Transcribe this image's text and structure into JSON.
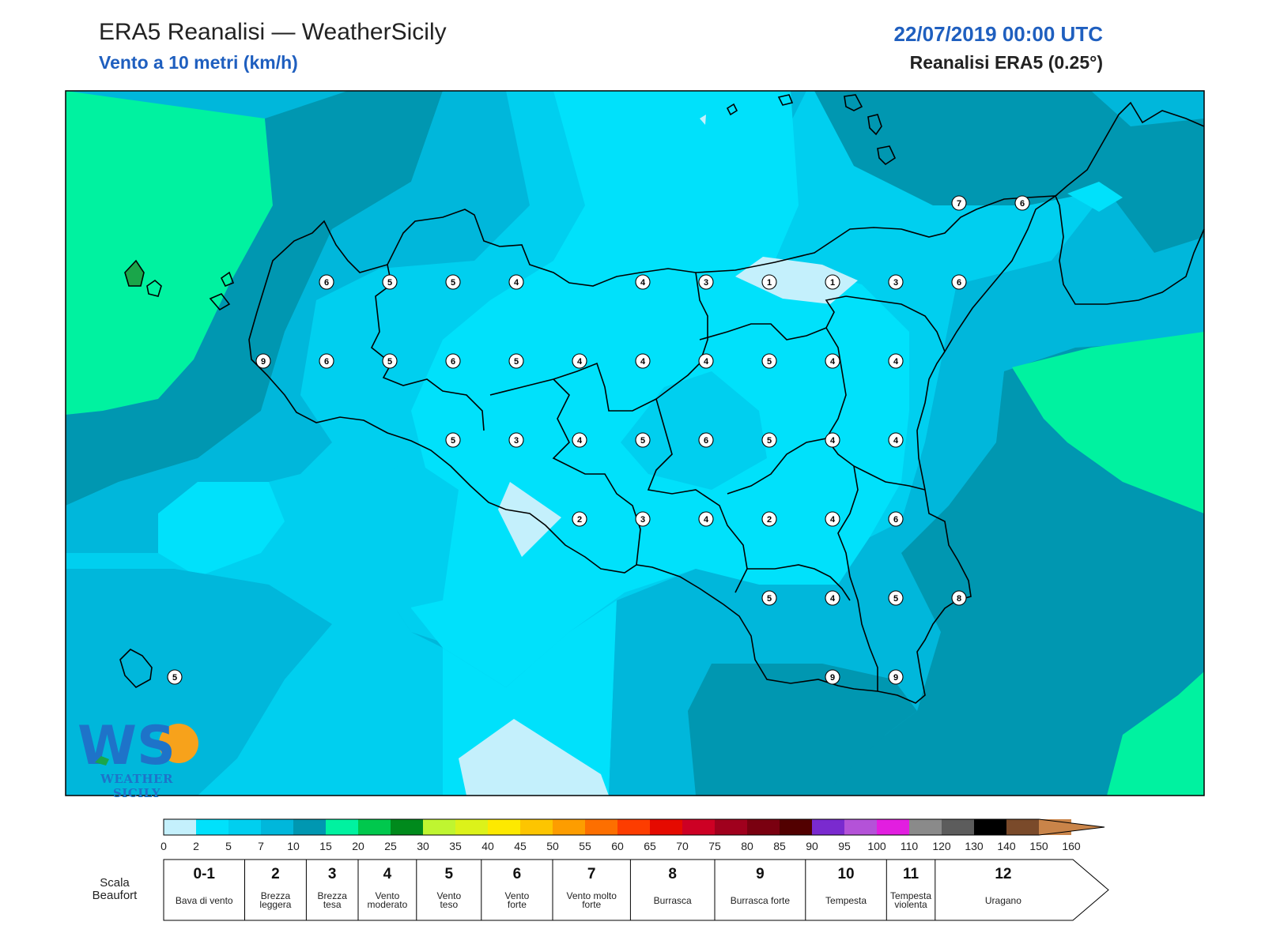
{
  "header": {
    "title": "ERA5 Reanalisi — WeatherSicily",
    "subtitle": "Vento a 10 metri (km/h)",
    "datetime": "22/07/2019 00:00 UTC",
    "source": "Reanalisi ERA5 (0.25°)"
  },
  "logo": {
    "mark": "WS",
    "text": "WEATHER SICILY"
  },
  "map": {
    "region": "Sicilia",
    "stations": [
      {
        "value": "6",
        "lon": 12.6,
        "lat": 38.1
      },
      {
        "value": "5",
        "lon": 13.1,
        "lat": 38.1
      },
      {
        "value": "5",
        "lon": 13.6,
        "lat": 38.1
      },
      {
        "value": "4",
        "lon": 14.1,
        "lat": 38.1
      },
      {
        "value": "4",
        "lon": 15.1,
        "lat": 38.1
      },
      {
        "value": "3",
        "lon": 15.6,
        "lat": 38.1
      },
      {
        "value": "1",
        "lon": 16.1,
        "lat": 38.1
      },
      {
        "value": "1",
        "lon": 16.6,
        "lat": 38.1
      },
      {
        "value": "3",
        "lon": 17.1,
        "lat": 38.1
      },
      {
        "value": "6",
        "lon": 17.6,
        "lat": 38.1
      },
      {
        "value": "9",
        "lon": 12.1,
        "lat": 37.6
      },
      {
        "value": "6",
        "lon": 12.6,
        "lat": 37.6
      },
      {
        "value": "5",
        "lon": 13.1,
        "lat": 37.6
      },
      {
        "value": "6",
        "lon": 13.6,
        "lat": 37.6
      },
      {
        "value": "5",
        "lon": 14.1,
        "lat": 37.6
      },
      {
        "value": "4",
        "lon": 14.6,
        "lat": 37.6
      },
      {
        "value": "4",
        "lon": 15.1,
        "lat": 37.6
      },
      {
        "value": "4",
        "lon": 15.6,
        "lat": 37.6
      },
      {
        "value": "5",
        "lon": 16.1,
        "lat": 37.6
      },
      {
        "value": "4",
        "lon": 16.6,
        "lat": 37.6
      },
      {
        "value": "4",
        "lon": 17.1,
        "lat": 37.6
      },
      {
        "value": "5",
        "lon": 13.6,
        "lat": 37.1
      },
      {
        "value": "3",
        "lon": 14.1,
        "lat": 37.1
      },
      {
        "value": "4",
        "lon": 14.6,
        "lat": 37.1
      },
      {
        "value": "5",
        "lon": 15.1,
        "lat": 37.1
      },
      {
        "value": "6",
        "lon": 15.6,
        "lat": 37.1
      },
      {
        "value": "5",
        "lon": 16.1,
        "lat": 37.1
      },
      {
        "value": "4",
        "lon": 16.6,
        "lat": 37.1
      },
      {
        "value": "4",
        "lon": 17.1,
        "lat": 37.1
      },
      {
        "value": "2",
        "lon": 14.6,
        "lat": 36.6
      },
      {
        "value": "3",
        "lon": 15.1,
        "lat": 36.6
      },
      {
        "value": "4",
        "lon": 15.6,
        "lat": 36.6
      },
      {
        "value": "2",
        "lon": 16.1,
        "lat": 36.6
      },
      {
        "value": "4",
        "lon": 16.6,
        "lat": 36.6
      },
      {
        "value": "6",
        "lon": 17.1,
        "lat": 36.6
      },
      {
        "value": "5",
        "lon": 16.1,
        "lat": 36.1
      },
      {
        "value": "4",
        "lon": 16.6,
        "lat": 36.1
      },
      {
        "value": "5",
        "lon": 17.1,
        "lat": 36.1
      },
      {
        "value": "8",
        "lon": 17.6,
        "lat": 36.1
      },
      {
        "value": "9",
        "lon": 16.6,
        "lat": 35.6
      },
      {
        "value": "9",
        "lon": 17.1,
        "lat": 35.6
      },
      {
        "value": "7",
        "lon": 17.6,
        "lat": 38.6
      },
      {
        "value": "6",
        "lon": 18.1,
        "lat": 38.6
      },
      {
        "value": "5",
        "lon": 11.4,
        "lat": 35.6
      }
    ]
  },
  "colorbar": {
    "ticks": [
      "0",
      "2",
      "5",
      "7",
      "10",
      "15",
      "20",
      "25",
      "30",
      "35",
      "40",
      "45",
      "50",
      "55",
      "60",
      "65",
      "70",
      "75",
      "80",
      "85",
      "90",
      "95",
      "100",
      "110",
      "120",
      "130",
      "140",
      "150",
      "160"
    ],
    "colors": [
      "#c4f0fc",
      "#00e1fb",
      "#00cfef",
      "#00b7db",
      "#0097b1",
      "#00f2a0",
      "#00c84d",
      "#008a1c",
      "#bff530",
      "#dcf21a",
      "#fde900",
      "#fdc500",
      "#fd9d00",
      "#fd6f00",
      "#fd3d00",
      "#e50a00",
      "#cd0024",
      "#a0001d",
      "#7a0010",
      "#520000",
      "#7a2acf",
      "#b452d8",
      "#e21ee0",
      "#8a8a8a",
      "#5c5c5c",
      "#000000",
      "#7a4a2a",
      "#c98449"
    ]
  },
  "beaufort": {
    "label": "Scala Beaufort",
    "levels": [
      {
        "num": "0-1",
        "name": "Bava di vento"
      },
      {
        "num": "2",
        "name": "Brezza leggera"
      },
      {
        "num": "3",
        "name": "Brezza tesa"
      },
      {
        "num": "4",
        "name": "Vento moderato"
      },
      {
        "num": "5",
        "name": "Vento teso"
      },
      {
        "num": "6",
        "name": "Vento forte"
      },
      {
        "num": "7",
        "name": "Vento molto forte"
      },
      {
        "num": "8",
        "name": "Burrasca"
      },
      {
        "num": "9",
        "name": "Burrasca forte"
      },
      {
        "num": "10",
        "name": "Tempesta"
      },
      {
        "num": "11",
        "name": "Tempesta violenta"
      },
      {
        "num": "12",
        "name": "Uragano"
      }
    ]
  }
}
